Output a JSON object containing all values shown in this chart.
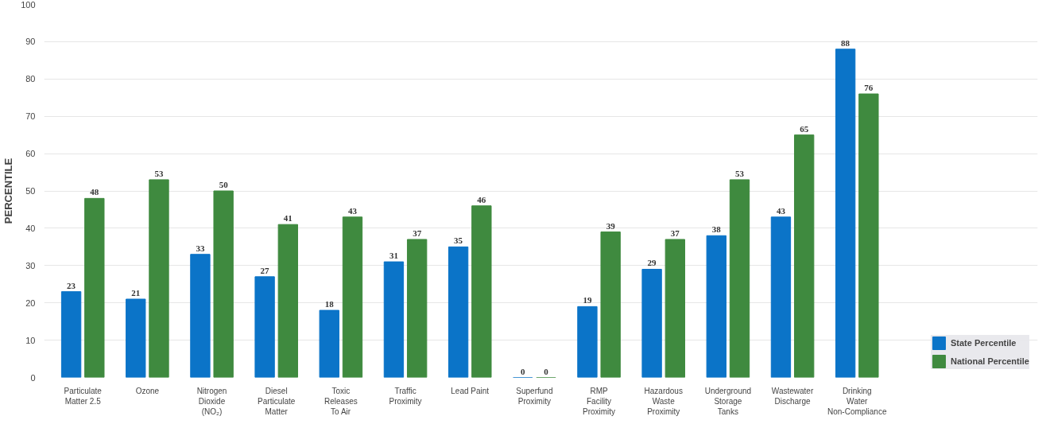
{
  "chart_data": {
    "type": "bar",
    "ylabel": "PERCENTILE",
    "categories": [
      "Particulate Matter 2.5",
      "Ozone",
      "Nitrogen Dioxide (NO₂)",
      "Diesel Particulate Matter",
      "Toxic Releases To Air",
      "Traffic Proximity",
      "Lead Paint",
      "Superfund Proximity",
      "RMP Facility Proximity",
      "Hazardous Waste Proximity",
      "Underground Storage Tanks",
      "Wastewater Discharge",
      "Drinking Water Non-Compliance"
    ],
    "series": [
      {
        "name": "State Percentile",
        "color": "#0b74c8",
        "values": [
          23,
          21,
          33,
          27,
          18,
          31,
          35,
          0,
          19,
          29,
          38,
          43,
          88
        ]
      },
      {
        "name": "National Percentile",
        "color": "#3f8a3f",
        "values": [
          48,
          53,
          50,
          41,
          43,
          37,
          46,
          0,
          39,
          37,
          53,
          65,
          76
        ]
      }
    ],
    "ylim": [
      0,
      100
    ],
    "yticks": [
      0,
      10,
      20,
      30,
      40,
      50,
      60,
      70,
      80,
      90,
      100
    ],
    "grid": "y",
    "legend": "bottom right",
    "data_labels": true
  }
}
